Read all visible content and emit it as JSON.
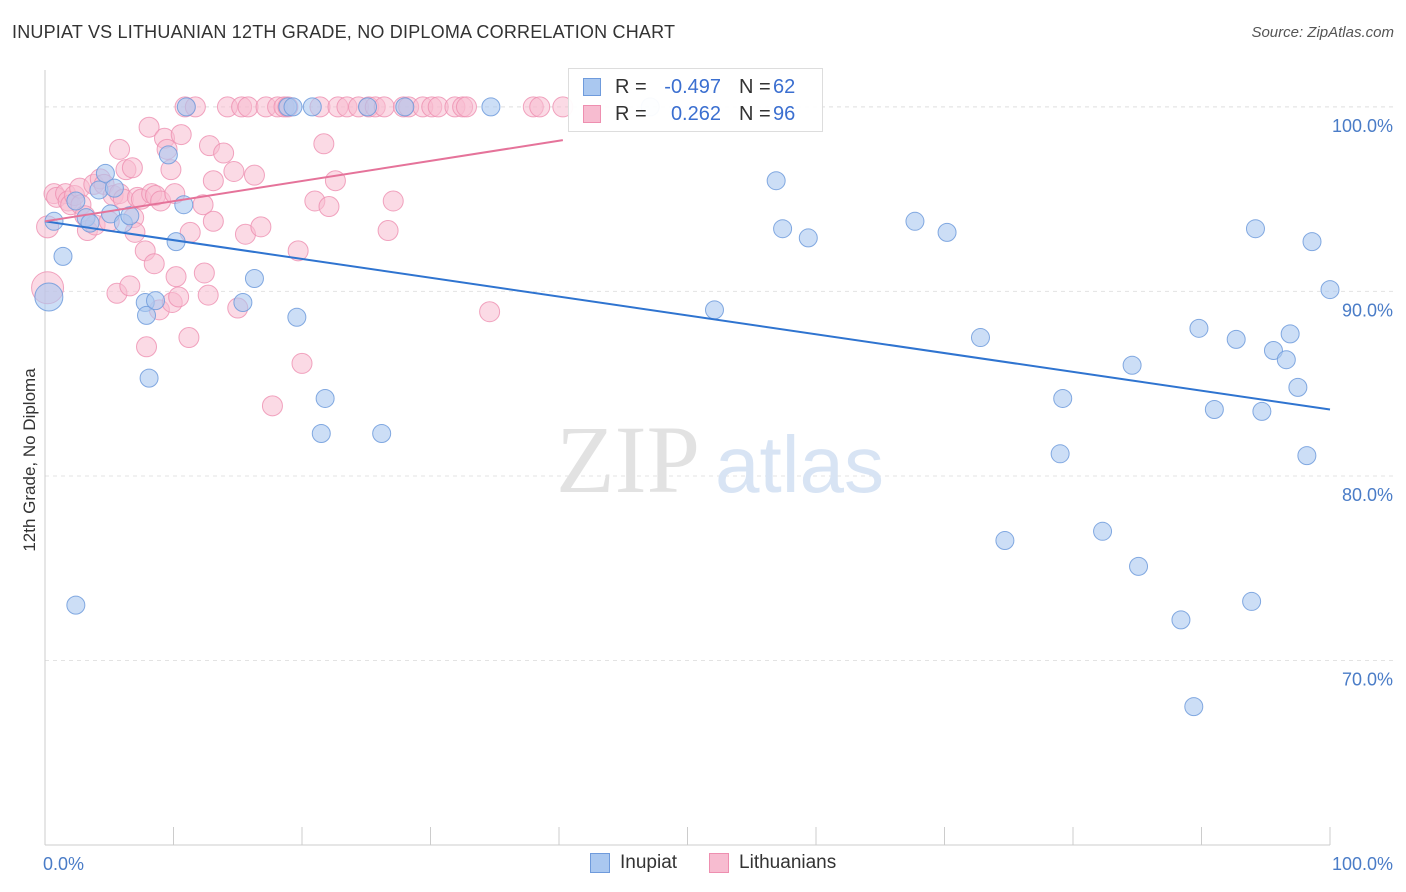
{
  "header": {
    "title": "INUPIAT VS LITHUANIAN 12TH GRADE, NO DIPLOMA CORRELATION CHART",
    "source": "Source: ZipAtlas.com"
  },
  "watermark": {
    "zip": "ZIP",
    "atlas": "atlas"
  },
  "legend": {
    "rows": [
      {
        "r_label": "R =",
        "r_value": "-0.497",
        "n_label": "N =",
        "n_value": "62"
      },
      {
        "r_label": "R =",
        "r_value": "0.262",
        "n_label": "N =",
        "n_value": "96"
      }
    ]
  },
  "bottom_legend": {
    "items": [
      "Inupiat",
      "Lithuanians"
    ]
  },
  "colors": {
    "inupiat_fill": "#aac8f0",
    "inupiat_stroke": "#6f9bdc",
    "inupiat_line": "#2f74d0",
    "lith_fill": "#f7bcd0",
    "lith_stroke": "#ee8fb0",
    "lith_line": "#e5739a",
    "axis_label": "#4a7cc7"
  },
  "chart_data": {
    "type": "scatter",
    "title": "INUPIAT VS LITHUANIAN 12TH GRADE, NO DIPLOMA CORRELATION CHART",
    "xlabel": "",
    "ylabel": "12th Grade, No Diploma",
    "xlim": [
      0,
      100
    ],
    "ylim": [
      60,
      102
    ],
    "x_tick_labels": [
      "0.0%",
      "100.0%"
    ],
    "y_ticks": [
      70,
      80,
      90,
      100
    ],
    "y_tick_labels": [
      "70.0%",
      "80.0%",
      "90.0%",
      "100.0%"
    ],
    "grid": true,
    "series": [
      {
        "name": "Inupiat",
        "r": -0.497,
        "n": 62,
        "trend": {
          "x": [
            0,
            100
          ],
          "y": [
            93.8,
            83.6
          ]
        },
        "points": [
          [
            0.3,
            89.7,
            14
          ],
          [
            0.7,
            93.8,
            9
          ],
          [
            1.4,
            91.9,
            9
          ],
          [
            2.4,
            94.9,
            9
          ],
          [
            3.2,
            94.0,
            9
          ],
          [
            3.5,
            93.7,
            9
          ],
          [
            4.2,
            95.5,
            9
          ],
          [
            4.7,
            96.4,
            9
          ],
          [
            5.1,
            94.2,
            9
          ],
          [
            5.4,
            95.6,
            9
          ],
          [
            6.1,
            93.7,
            9
          ],
          [
            6.6,
            94.1,
            9
          ],
          [
            7.8,
            89.4,
            9
          ],
          [
            7.9,
            88.7,
            9
          ],
          [
            8.1,
            85.3,
            9
          ],
          [
            8.6,
            89.5,
            9
          ],
          [
            9.6,
            97.4,
            9
          ],
          [
            10.2,
            92.7,
            9
          ],
          [
            10.8,
            94.7,
            9
          ],
          [
            11.0,
            100.0,
            9
          ],
          [
            15.4,
            89.4,
            9
          ],
          [
            16.3,
            90.7,
            9
          ],
          [
            18.9,
            100.0,
            9
          ],
          [
            19.3,
            100.0,
            9
          ],
          [
            19.6,
            88.6,
            9
          ],
          [
            20.8,
            100.0,
            9
          ],
          [
            21.5,
            82.3,
            9
          ],
          [
            21.8,
            84.2,
            9
          ],
          [
            25.1,
            100.0,
            9
          ],
          [
            26.2,
            82.3,
            9
          ],
          [
            28.0,
            100.0,
            9
          ],
          [
            34.7,
            100.0,
            9
          ],
          [
            47.1,
            100.0,
            9
          ],
          [
            52.1,
            89.0,
            9
          ],
          [
            56.9,
            96.0,
            9
          ],
          [
            57.4,
            93.4,
            9
          ],
          [
            59.4,
            92.9,
            9
          ],
          [
            67.7,
            93.8,
            9
          ],
          [
            70.2,
            93.2,
            9
          ],
          [
            72.8,
            87.5,
            9
          ],
          [
            74.7,
            76.5,
            9
          ],
          [
            79.0,
            81.2,
            9
          ],
          [
            79.2,
            84.2,
            9
          ],
          [
            82.3,
            77.0,
            9
          ],
          [
            84.6,
            86.0,
            9
          ],
          [
            85.1,
            75.1,
            9
          ],
          [
            88.4,
            72.2,
            9
          ],
          [
            89.4,
            67.5,
            9
          ],
          [
            89.8,
            88.0,
            9
          ],
          [
            91.0,
            83.6,
            9
          ],
          [
            92.7,
            87.4,
            9
          ],
          [
            93.9,
            73.2,
            9
          ],
          [
            94.2,
            93.4,
            9
          ],
          [
            94.7,
            83.5,
            9
          ],
          [
            95.6,
            86.8,
            9
          ],
          [
            96.6,
            86.3,
            9
          ],
          [
            96.9,
            87.7,
            9
          ],
          [
            97.5,
            84.8,
            9
          ],
          [
            98.2,
            81.1,
            9
          ],
          [
            98.6,
            92.7,
            9
          ],
          [
            100.0,
            90.1,
            9
          ],
          [
            2.4,
            73.0,
            9
          ]
        ]
      },
      {
        "name": "Lithuanians",
        "r": 0.262,
        "n": 96,
        "trend": {
          "x": [
            0,
            40.3
          ],
          "y": [
            93.8,
            98.2
          ]
        },
        "points": [
          [
            0.2,
            90.2,
            16
          ],
          [
            0.2,
            93.5,
            11
          ],
          [
            0.7,
            95.3,
            10
          ],
          [
            0.9,
            95.1,
            10
          ],
          [
            1.6,
            95.3,
            10
          ],
          [
            1.8,
            94.9,
            10
          ],
          [
            2.0,
            94.7,
            10
          ],
          [
            2.3,
            95.2,
            10
          ],
          [
            2.7,
            95.6,
            10
          ],
          [
            2.8,
            94.7,
            10
          ],
          [
            3.1,
            94.1,
            10
          ],
          [
            3.3,
            93.3,
            10
          ],
          [
            3.8,
            95.8,
            10
          ],
          [
            3.9,
            93.6,
            10
          ],
          [
            4.3,
            96.1,
            10
          ],
          [
            4.6,
            95.8,
            10
          ],
          [
            5.0,
            93.8,
            10
          ],
          [
            5.3,
            95.2,
            10
          ],
          [
            5.8,
            95.3,
            10
          ],
          [
            5.6,
            89.9,
            10
          ],
          [
            5.8,
            97.7,
            10
          ],
          [
            6.1,
            95.0,
            10
          ],
          [
            6.3,
            96.6,
            10
          ],
          [
            6.6,
            90.3,
            10
          ],
          [
            6.8,
            96.7,
            10
          ],
          [
            6.9,
            94.0,
            10
          ],
          [
            7.0,
            93.2,
            10
          ],
          [
            7.2,
            95.1,
            10
          ],
          [
            7.5,
            95.0,
            10
          ],
          [
            7.8,
            92.2,
            10
          ],
          [
            7.9,
            87.0,
            10
          ],
          [
            8.1,
            98.9,
            10
          ],
          [
            8.3,
            95.3,
            10
          ],
          [
            8.5,
            91.5,
            10
          ],
          [
            8.6,
            95.2,
            10
          ],
          [
            8.9,
            89.0,
            10
          ],
          [
            9.0,
            94.9,
            10
          ],
          [
            9.3,
            98.3,
            10
          ],
          [
            9.5,
            97.7,
            10
          ],
          [
            9.8,
            96.6,
            10
          ],
          [
            9.9,
            89.4,
            10
          ],
          [
            10.1,
            95.3,
            10
          ],
          [
            10.2,
            90.8,
            10
          ],
          [
            10.4,
            89.7,
            10
          ],
          [
            10.6,
            98.5,
            10
          ],
          [
            10.9,
            100.0,
            10
          ],
          [
            11.2,
            87.5,
            10
          ],
          [
            11.3,
            93.2,
            10
          ],
          [
            11.7,
            100.0,
            10
          ],
          [
            12.3,
            94.7,
            10
          ],
          [
            12.4,
            91.0,
            10
          ],
          [
            12.7,
            89.8,
            10
          ],
          [
            12.8,
            97.9,
            10
          ],
          [
            13.1,
            93.8,
            10
          ],
          [
            13.1,
            96.0,
            10
          ],
          [
            13.9,
            97.5,
            10
          ],
          [
            14.2,
            100.0,
            10
          ],
          [
            14.7,
            96.5,
            10
          ],
          [
            15.0,
            89.1,
            10
          ],
          [
            15.3,
            100.0,
            10
          ],
          [
            15.6,
            93.1,
            10
          ],
          [
            15.8,
            100.0,
            10
          ],
          [
            16.3,
            96.3,
            10
          ],
          [
            16.8,
            93.5,
            10
          ],
          [
            17.2,
            100.0,
            10
          ],
          [
            17.7,
            83.8,
            10
          ],
          [
            18.1,
            100.0,
            10
          ],
          [
            18.6,
            100.0,
            10
          ],
          [
            18.9,
            100.0,
            10
          ],
          [
            19.7,
            92.2,
            10
          ],
          [
            20.0,
            86.1,
            10
          ],
          [
            21.0,
            94.9,
            10
          ],
          [
            21.4,
            100.0,
            10
          ],
          [
            21.7,
            98.0,
            10
          ],
          [
            22.1,
            94.6,
            10
          ],
          [
            22.6,
            96.0,
            10
          ],
          [
            22.8,
            100.0,
            10
          ],
          [
            23.5,
            100.0,
            10
          ],
          [
            24.4,
            100.0,
            10
          ],
          [
            25.2,
            100.0,
            10
          ],
          [
            25.7,
            100.0,
            10
          ],
          [
            26.4,
            100.0,
            10
          ],
          [
            26.7,
            93.3,
            10
          ],
          [
            27.1,
            94.9,
            10
          ],
          [
            27.9,
            100.0,
            10
          ],
          [
            28.3,
            100.0,
            10
          ],
          [
            29.4,
            100.0,
            10
          ],
          [
            30.1,
            100.0,
            10
          ],
          [
            30.6,
            100.0,
            10
          ],
          [
            31.9,
            100.0,
            10
          ],
          [
            32.5,
            100.0,
            10
          ],
          [
            32.8,
            100.0,
            10
          ],
          [
            34.6,
            88.9,
            10
          ],
          [
            38.0,
            100.0,
            10
          ],
          [
            38.5,
            100.0,
            10
          ],
          [
            40.3,
            100.0,
            10
          ]
        ]
      }
    ]
  }
}
